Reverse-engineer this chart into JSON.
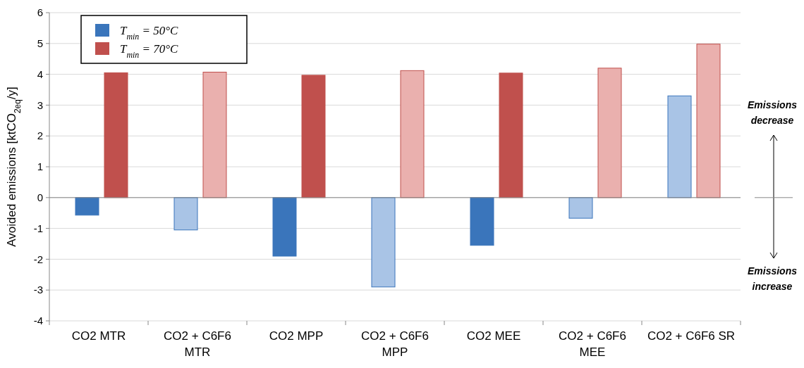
{
  "chart_data": {
    "type": "bar",
    "ylabel": "Avoided emissions [ktCO$_{2eq}$/y]",
    "categories": [
      "CO2 MTR",
      "CO2 + C6F6 MTR",
      "CO2 MPP",
      "CO2 + C6F6 MPP",
      "CO2 MEE",
      "CO2 + C6F6 MEE",
      "CO2 + C6F6 SR"
    ],
    "series": [
      {
        "name": "T$_{min}$ = 50°C",
        "color": "#3a75bb",
        "colors": [
          "#3a75bb",
          "#a9c4e6",
          "#3a75bb",
          "#a9c4e6",
          "#3a75bb",
          "#a9c4e6",
          "#a9c4e6"
        ],
        "values": [
          -0.57,
          -1.05,
          -1.9,
          -2.9,
          -1.55,
          -0.67,
          3.3
        ]
      },
      {
        "name": "T$_{min}$ = 70°C",
        "color": "#c0504d",
        "colors": [
          "#c0504d",
          "#eab0ae",
          "#c0504d",
          "#eab0ae",
          "#c0504d",
          "#eab0ae",
          "#eab0ae"
        ],
        "values": [
          4.05,
          4.07,
          3.97,
          4.12,
          4.04,
          4.2,
          4.98
        ]
      }
    ],
    "ylim": [
      -4,
      6
    ],
    "yticks": [
      -4,
      -3,
      -2,
      -1,
      0,
      1,
      2,
      3,
      4,
      5,
      6
    ],
    "grid": "y",
    "legend": "top left",
    "annotations": [
      "Emissions decrease",
      "Emissions increase"
    ]
  }
}
